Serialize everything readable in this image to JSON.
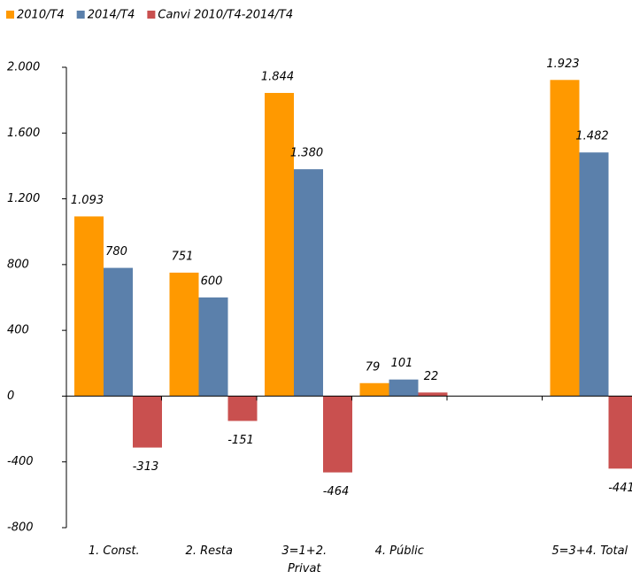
{
  "chart_data": {
    "type": "bar",
    "categories": [
      "1. Const.",
      "2. Resta",
      "3=1+2.\nPrivat",
      "4. Públic",
      null,
      "5=3+4. Total"
    ],
    "series": [
      {
        "name": "2010/T4",
        "color": "#ff9900",
        "values": [
          1093,
          751,
          1844,
          79,
          null,
          1923
        ],
        "value_labels": [
          "1.093",
          "751",
          "1.844",
          "79",
          null,
          "1.923"
        ]
      },
      {
        "name": "2014/T4",
        "color": "#5b80ab",
        "values": [
          780,
          600,
          1380,
          101,
          null,
          1482
        ],
        "value_labels": [
          "780",
          "600",
          "1.380",
          "101",
          null,
          "1.482"
        ]
      },
      {
        "name": "Canvi 2010/T4-2014/T4",
        "color": "#c9504f",
        "values": [
          -313,
          -151,
          -464,
          22,
          null,
          -441
        ]
      }
    ],
    "ylim": [
      -800,
      2000
    ],
    "yticks": [
      {
        "value": 2000,
        "label": "2.000"
      },
      {
        "value": 1600,
        "label": "1.600"
      },
      {
        "value": 1200,
        "label": "1.200"
      },
      800,
      400,
      0,
      -400,
      -800
    ]
  }
}
